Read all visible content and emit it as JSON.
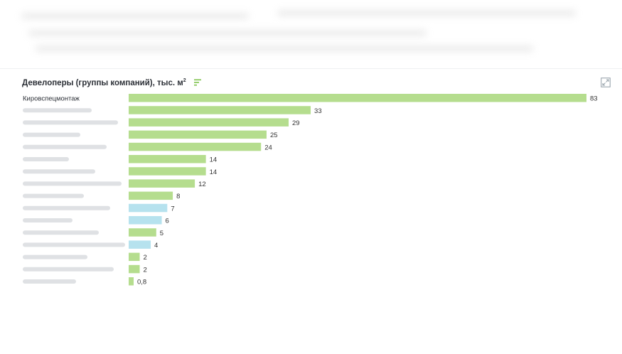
{
  "header": {
    "title": "Девелоперы (группы компаний), тыс. м",
    "title_sup": "2"
  },
  "icons": {
    "sort": "sort-bars-icon",
    "expand": "expand-icon"
  },
  "colors": {
    "green": "#b5dd8e",
    "blue": "#b6e2ee",
    "value_text": "#333333",
    "label_text": "#2b2f36"
  },
  "chart_data": {
    "type": "bar",
    "orientation": "horizontal",
    "categories": [
      "Кировспецмонтаж",
      "",
      "",
      "",
      "",
      "",
      "",
      "",
      "",
      "",
      "",
      "",
      "",
      "",
      "",
      ""
    ],
    "values": [
      83,
      33,
      29,
      25,
      24,
      14,
      14,
      12,
      8,
      7,
      6,
      5,
      4,
      2,
      2,
      0.8
    ],
    "value_labels": [
      "83",
      "33",
      "29",
      "25",
      "24",
      "14",
      "14",
      "12",
      "8",
      "7",
      "6",
      "5",
      "4",
      "2",
      "2",
      "0,8"
    ],
    "bar_colors": [
      "green",
      "green",
      "green",
      "green",
      "green",
      "green",
      "green",
      "green",
      "green",
      "blue",
      "blue",
      "green",
      "blue",
      "green",
      "green",
      "green"
    ],
    "blurred_labels": [
      false,
      true,
      true,
      true,
      true,
      true,
      true,
      true,
      true,
      true,
      true,
      true,
      true,
      true,
      true,
      true
    ],
    "xlim": [
      0,
      83
    ],
    "grid": false,
    "legend": "none"
  }
}
